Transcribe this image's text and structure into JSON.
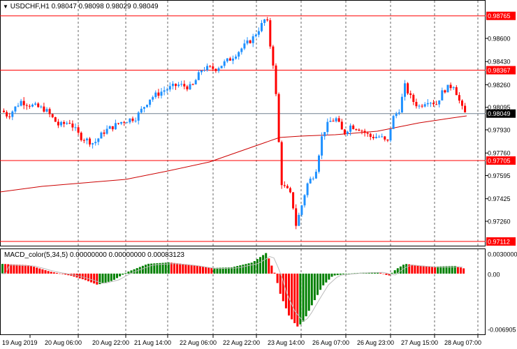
{
  "header": {
    "symbol_tf": "USDCHF,H1",
    "ohlc": "0.98047 0.98098 0.98029 0.98049"
  },
  "macd": {
    "label": "MACD_color(5,34,5) 0.00000000 0.00000000 0.00083123",
    "axis_labels": [
      "0.0030000",
      "0.00",
      "-0.006905"
    ]
  },
  "price_axis": {
    "labels": [
      "0.98600",
      "0.98430",
      "0.98260",
      "0.98095",
      "0.97930",
      "0.97760",
      "0.97595",
      "0.97425",
      "0.97260"
    ],
    "tag_levels": [
      "0.98765",
      "0.98367",
      "0.97705",
      "0.97112"
    ],
    "current": "0.98049"
  },
  "time_axis": [
    "19 Aug 2019",
    "20 Aug 06:00",
    "20 Aug 22:00",
    "21 Aug 14:00",
    "22 Aug 06:00",
    "22 Aug 22:00",
    "23 Aug 14:00",
    "26 Aug 07:00",
    "26 Aug 23:00",
    "27 Aug 15:00",
    "28 Aug 07:00"
  ],
  "colors": {
    "bull": "#1e90ff",
    "bear": "#ff0000",
    "level_line": "#ff0000",
    "ma_line": "#cc0000",
    "macd_up": "#008000",
    "macd_down": "#ff0000",
    "signal": "#bbbbbb",
    "grid": "#000000",
    "current_line": "#708090"
  }
}
